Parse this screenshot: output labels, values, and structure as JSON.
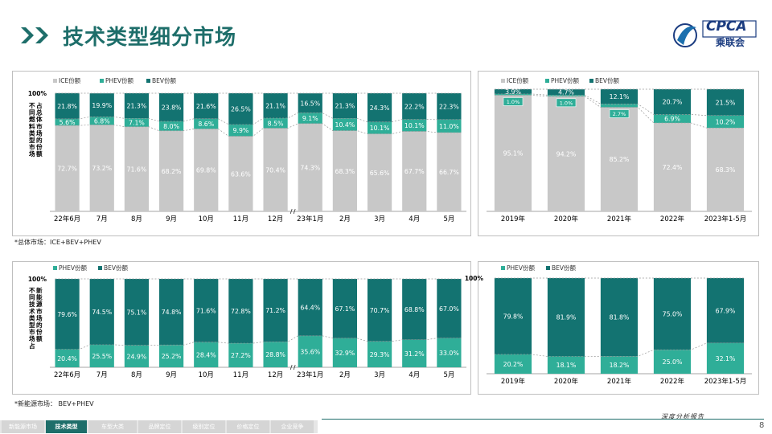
{
  "header": {
    "title": "技术类型细分市场",
    "logo_text": "CPCA",
    "logo_cn": "乘联会"
  },
  "colors": {
    "ice": "#c8c8c8",
    "phev": "#2fae98",
    "bev": "#137371",
    "title": "#1e6e6a"
  },
  "chart_data": [
    {
      "type": "bar",
      "stacked": true,
      "ylabel": "不同燃料类型市场占总体市场的份额",
      "y_top_label": "100%",
      "categories": [
        "22年6月",
        "7月",
        "8月",
        "9月",
        "10月",
        "11月",
        "12月",
        "23年1月",
        "2月",
        "3月",
        "4月",
        "5月"
      ],
      "axis_break_after": "12月",
      "series": [
        {
          "name": "ICE份额",
          "values": [
            72.7,
            73.2,
            71.6,
            68.2,
            69.8,
            63.6,
            70.4,
            74.3,
            68.3,
            65.6,
            67.7,
            66.7
          ],
          "labels": [
            "72.7%",
            "73.2%",
            "71.6%",
            "68.2%",
            "69.8%",
            "63.6%",
            "70.4%",
            "74.3%",
            "68.3%",
            "65.6%",
            "67.7%",
            "66.7%"
          ]
        },
        {
          "name": "PHEV份额",
          "values": [
            5.6,
            6.8,
            7.1,
            8.0,
            8.6,
            9.9,
            8.5,
            9.1,
            10.4,
            10.1,
            10.1,
            11.0
          ],
          "labels": [
            "5.6%",
            "6.8%",
            "7.1%",
            "8.0%",
            "8.6%",
            "9.9%",
            "8.5%",
            "9.1%",
            "10.4%",
            "10.1%",
            "10.1%",
            "11.0%"
          ]
        },
        {
          "name": "BEV份额",
          "values": [
            21.8,
            19.9,
            21.3,
            23.8,
            21.6,
            26.5,
            21.1,
            16.5,
            21.3,
            24.3,
            22.2,
            22.3
          ],
          "labels": [
            "21.8%",
            "19.9%",
            "21.3%",
            "23.8%",
            "21.6%",
            "26.5%",
            "21.1%",
            "16.5%",
            "21.3%",
            "24.3%",
            "22.2%",
            "22.3%"
          ]
        }
      ],
      "note": "*总体市场：ICE+BEV+PHEV"
    },
    {
      "type": "bar",
      "stacked": true,
      "categories": [
        "2019年",
        "2020年",
        "2021年",
        "2022年",
        "2023年1-5月"
      ],
      "series": [
        {
          "name": "ICE份额",
          "values": [
            95.1,
            94.2,
            85.2,
            72.4,
            68.3
          ],
          "labels": [
            "95.1%",
            "94.2%",
            "85.2%",
            "72.4%",
            "68.3%"
          ]
        },
        {
          "name": "PHEV份额",
          "values": [
            1.0,
            1.0,
            2.7,
            6.9,
            10.2
          ],
          "labels": [
            "1.0%",
            "1.0%",
            "2.7%",
            "6.9%",
            "10.2%"
          ]
        },
        {
          "name": "BEV份额",
          "values": [
            3.9,
            4.7,
            12.1,
            20.7,
            21.5
          ],
          "labels": [
            "3.9%",
            "4.7%",
            "12.1%",
            "20.7%",
            "21.5%"
          ]
        }
      ]
    },
    {
      "type": "bar",
      "stacked": true,
      "ylabel": "不同技术类型市场占新能源市场的份额",
      "y_top_label": "100%",
      "categories": [
        "22年6月",
        "7月",
        "8月",
        "9月",
        "10月",
        "11月",
        "12月",
        "23年1月",
        "2月",
        "3月",
        "4月",
        "5月"
      ],
      "axis_break_after": "12月",
      "series": [
        {
          "name": "PHEV份额",
          "values": [
            20.4,
            25.5,
            24.9,
            25.2,
            28.4,
            27.2,
            28.8,
            35.6,
            32.9,
            29.3,
            31.2,
            33.0
          ],
          "labels": [
            "20.4%",
            "25.5%",
            "24.9%",
            "25.2%",
            "28.4%",
            "27.2%",
            "28.8%",
            "35.6%",
            "32.9%",
            "29.3%",
            "31.2%",
            "33.0%"
          ]
        },
        {
          "name": "BEV份额",
          "values": [
            79.6,
            74.5,
            75.1,
            74.8,
            71.6,
            72.8,
            71.2,
            64.4,
            67.1,
            70.7,
            68.8,
            67.0
          ],
          "labels": [
            "79.6%",
            "74.5%",
            "75.1%",
            "74.8%",
            "71.6%",
            "72.8%",
            "71.2%",
            "64.4%",
            "67.1%",
            "70.7%",
            "68.8%",
            "67.0%"
          ]
        }
      ],
      "note": "*新能源市场：  BEV+PHEV"
    },
    {
      "type": "bar",
      "stacked": true,
      "y_top_label": "100%",
      "categories": [
        "2019年",
        "2020年",
        "2021年",
        "2022年",
        "2023年1-5月"
      ],
      "series": [
        {
          "name": "PHEV份额",
          "values": [
            20.2,
            18.1,
            18.2,
            25.0,
            32.1
          ],
          "labels": [
            "20.2%",
            "18.1%",
            "18.2%",
            "25.0%",
            "32.1%"
          ]
        },
        {
          "name": "BEV份额",
          "values": [
            79.8,
            81.9,
            81.8,
            75.0,
            67.9
          ],
          "labels": [
            "79.8%",
            "81.9%",
            "81.8%",
            "75.0%",
            "67.9%"
          ]
        }
      ]
    }
  ],
  "nav": {
    "items": [
      "新能源市场",
      "技术类型",
      "车型大类",
      "品牌定位",
      "级别定位",
      "价格定位",
      "企业竞争"
    ],
    "active_index": 1
  },
  "footer": {
    "text": "深度分析报告",
    "page": "8"
  }
}
